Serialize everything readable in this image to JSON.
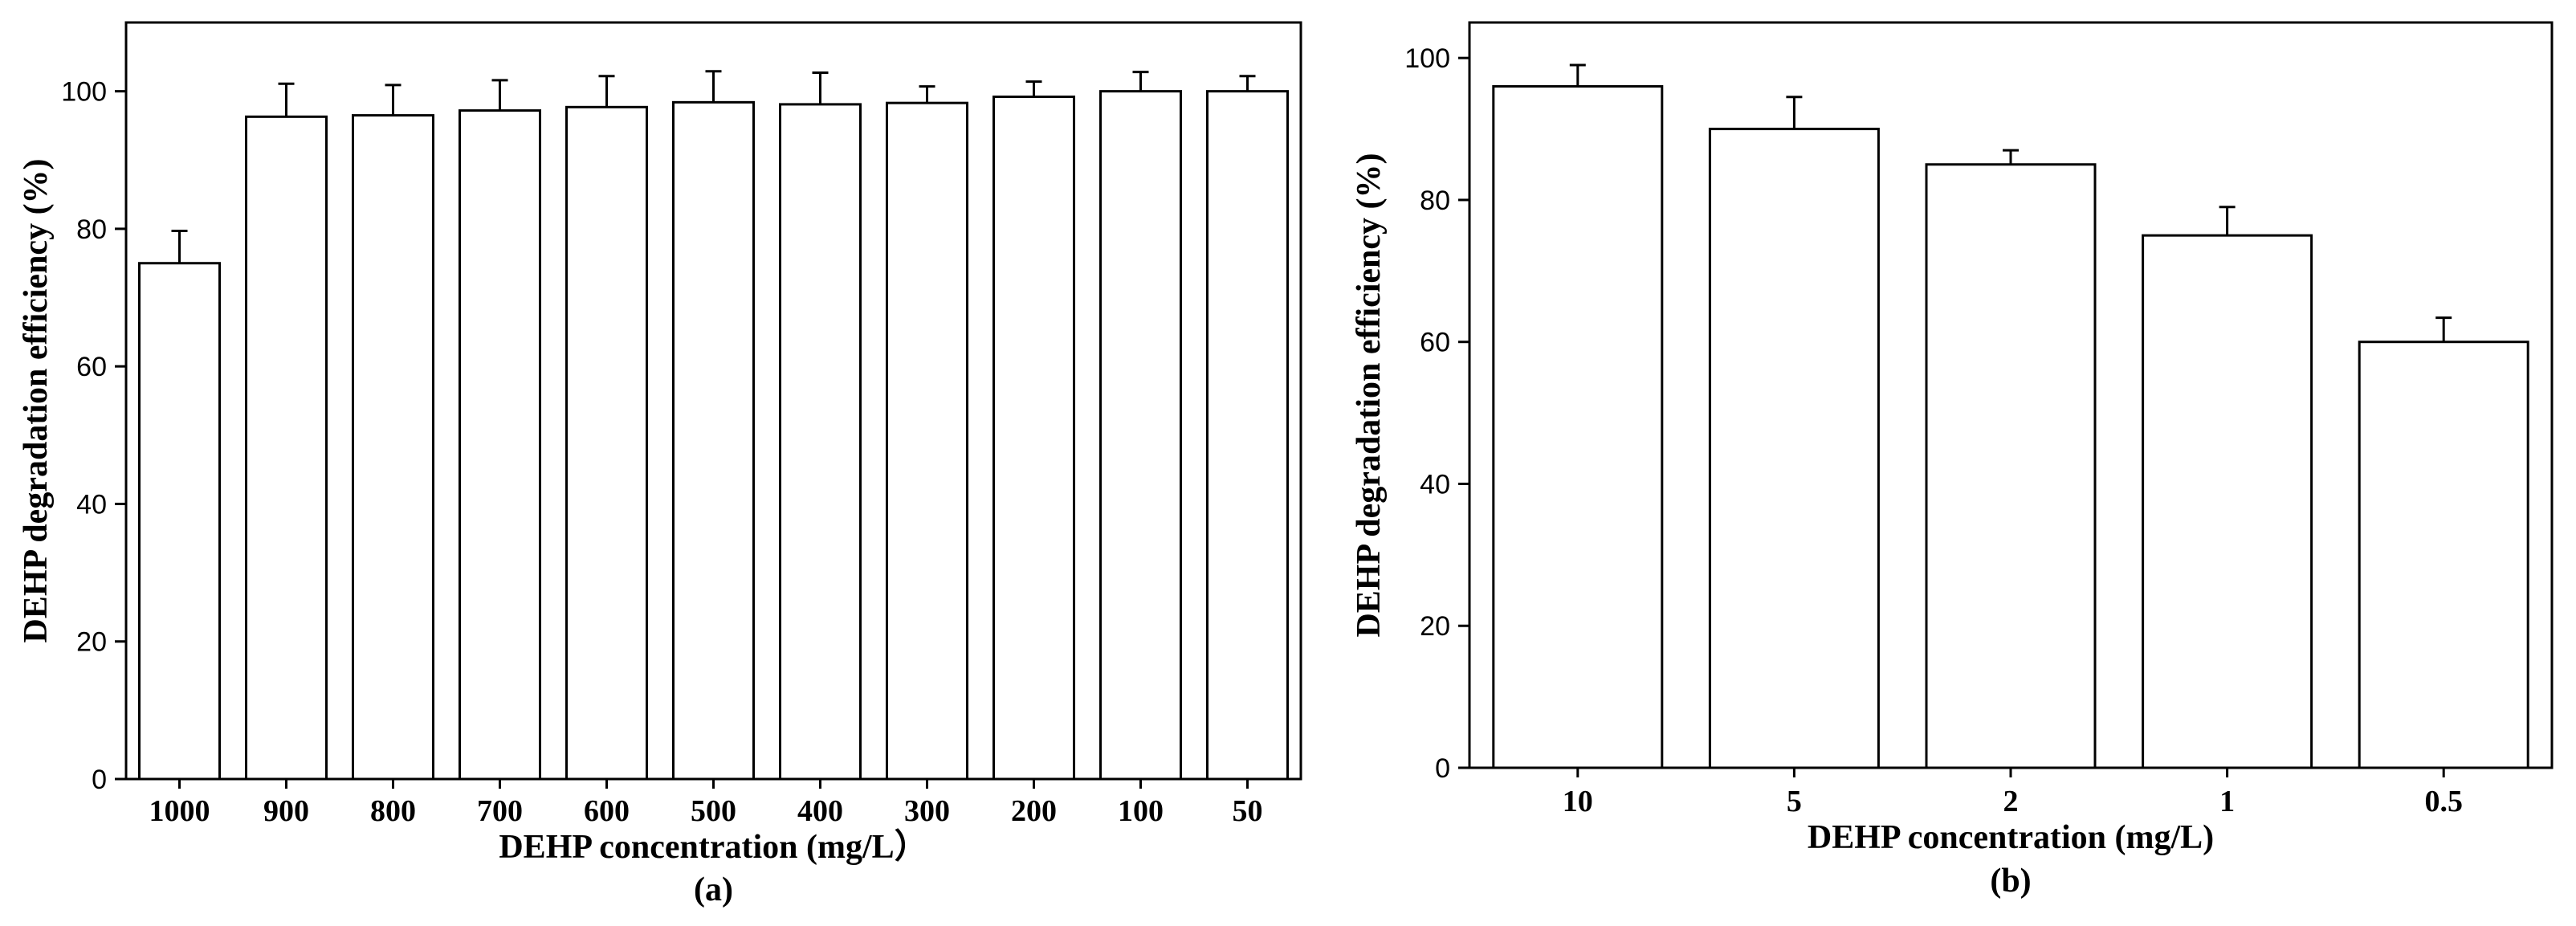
{
  "chart_data": [
    {
      "type": "bar",
      "panel_label": "(a)",
      "xlabel": "DEHP concentration (mg/L）",
      "ylabel": "DEHP degradation efficiency (%)",
      "categories": [
        "1000",
        "900",
        "800",
        "700",
        "600",
        "500",
        "400",
        "300",
        "200",
        "100",
        "50"
      ],
      "values": [
        75,
        96.3,
        96.5,
        97.2,
        97.7,
        98.4,
        98.1,
        98.3,
        99.2,
        100,
        100
      ],
      "errors": [
        4.7,
        4.8,
        4.4,
        4.4,
        4.5,
        4.5,
        4.6,
        2.4,
        2.2,
        2.8,
        2.2
      ],
      "ylim": [
        0,
        110
      ],
      "yticks": [
        0,
        20,
        40,
        60,
        80,
        100
      ]
    },
    {
      "type": "bar",
      "panel_label": "(b)",
      "xlabel": "DEHP concentration (mg/L)",
      "ylabel": "DEHP degradation efficiency (%)",
      "categories": [
        "10",
        "5",
        "2",
        "1",
        "0.5"
      ],
      "values": [
        96,
        90,
        85,
        75,
        60
      ],
      "errors": [
        3,
        4.5,
        2,
        4,
        3.4
      ],
      "ylim": [
        0,
        105
      ],
      "yticks": [
        0,
        20,
        40,
        60,
        80,
        100
      ]
    }
  ]
}
